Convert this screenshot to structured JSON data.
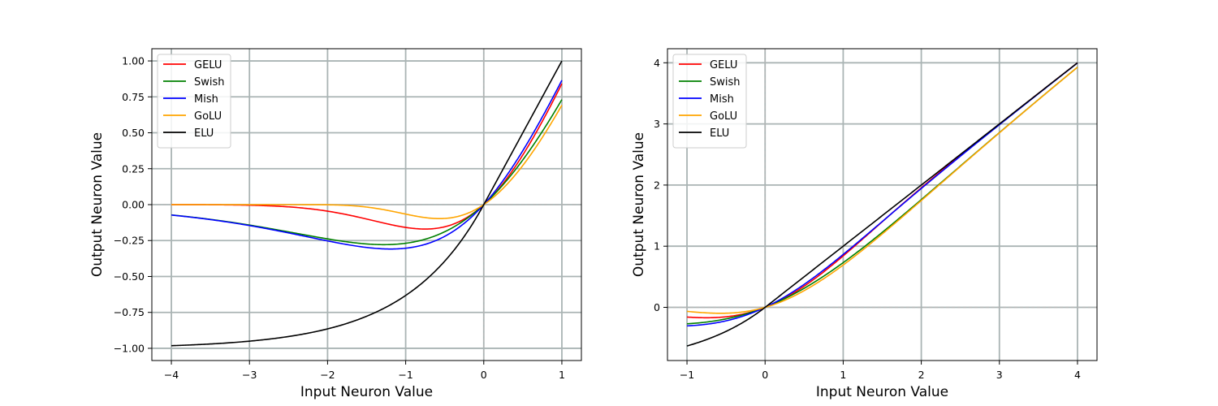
{
  "chart_data": [
    {
      "type": "line",
      "xlabel": "Input Neuron Value",
      "ylabel": "Output Neuron Value",
      "xlim": [
        -4.25,
        1.25
      ],
      "ylim": [
        -1.085,
        1.085
      ],
      "xticks": [
        -4,
        -3,
        -2,
        -1,
        0,
        1
      ],
      "yticks": [
        -1.0,
        -0.75,
        -0.5,
        -0.25,
        0.0,
        0.25,
        0.5,
        0.75,
        1.0
      ],
      "xtick_labels": [
        "−4",
        "−3",
        "−2",
        "−1",
        "0",
        "1"
      ],
      "ytick_labels": [
        "−1.00",
        "−0.75",
        "−0.50",
        "−0.25",
        "0.00",
        "0.25",
        "0.50",
        "0.75",
        "1.00"
      ],
      "x_domain": [
        -4,
        1
      ],
      "grid": true,
      "legend_position": "top-left",
      "series": [
        {
          "name": "GELU",
          "color": "#ff0000",
          "function": "gelu"
        },
        {
          "name": "Swish",
          "color": "#008000",
          "function": "swish"
        },
        {
          "name": "Mish",
          "color": "#0000ff",
          "function": "mish"
        },
        {
          "name": "GoLU",
          "color": "#ffa500",
          "function": "golu"
        },
        {
          "name": "ELU",
          "color": "#000000",
          "function": "elu"
        }
      ]
    },
    {
      "type": "line",
      "xlabel": "Input Neuron Value",
      "ylabel": "Output Neuron Value",
      "xlim": [
        -1.25,
        4.25
      ],
      "ylim": [
        -0.87,
        4.23
      ],
      "xticks": [
        -1,
        0,
        1,
        2,
        3,
        4
      ],
      "yticks": [
        0,
        1,
        2,
        3,
        4
      ],
      "xtick_labels": [
        "−1",
        "0",
        "1",
        "2",
        "3",
        "4"
      ],
      "ytick_labels": [
        "0",
        "1",
        "2",
        "3",
        "4"
      ],
      "x_domain": [
        -1,
        4
      ],
      "grid": true,
      "legend_position": "top-left",
      "series": [
        {
          "name": "GELU",
          "color": "#ff0000",
          "function": "gelu"
        },
        {
          "name": "Swish",
          "color": "#008000",
          "function": "swish"
        },
        {
          "name": "Mish",
          "color": "#0000ff",
          "function": "mish"
        },
        {
          "name": "GoLU",
          "color": "#ffa500",
          "function": "golu"
        },
        {
          "name": "ELU",
          "color": "#000000",
          "function": "elu"
        }
      ]
    }
  ]
}
